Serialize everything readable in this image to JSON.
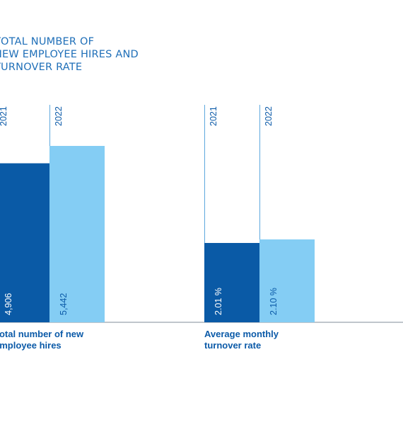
{
  "title_lines": [
    "TOTAL NUMBER OF",
    "NEW EMPLOYEE HIRES AND",
    "TURNOVER RATE"
  ],
  "chart_data": {
    "type": "bar",
    "title": "TOTAL NUMBER OF NEW EMPLOYEE HIRES AND TURNOVER RATE",
    "series": [
      {
        "name": "2021",
        "color": "#0a5aa6"
      },
      {
        "name": "2022",
        "color": "#84cdf4"
      }
    ],
    "groups": [
      {
        "label_lines": [
          "Total number of new",
          "employee hires"
        ],
        "values": [
          4906,
          5442
        ],
        "value_labels": [
          "4,906",
          "5,442"
        ]
      },
      {
        "label_lines": [
          "Average monthly",
          "turnover rate"
        ],
        "values": [
          2.01,
          2.1
        ],
        "value_labels": [
          "2.01 %",
          "2.10 %"
        ]
      }
    ],
    "axes": "none",
    "grid": false,
    "colors": {
      "baseline": "#9aa4ad",
      "guide_line": "#5ea8de",
      "label": "#0b5aa8",
      "value_dark_bar": "#ffffff",
      "value_light_bar": "#0b5aa8"
    }
  }
}
